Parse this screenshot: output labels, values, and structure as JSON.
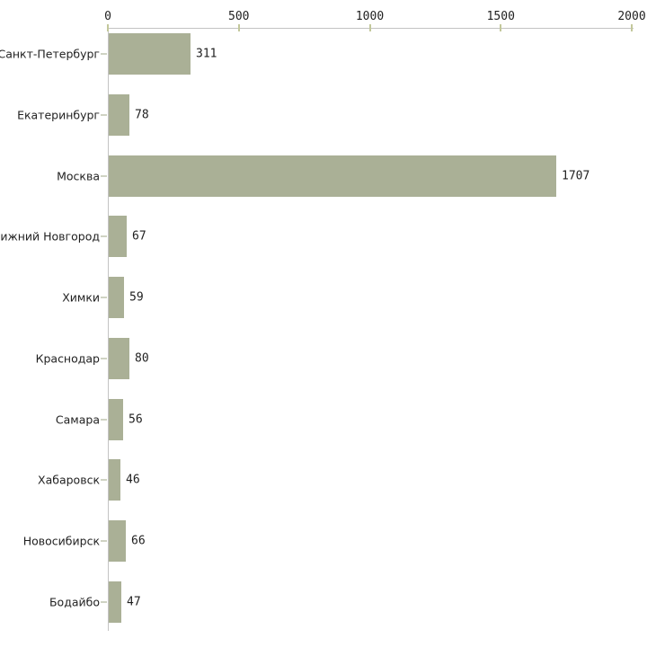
{
  "chart_data": {
    "type": "bar",
    "orientation": "horizontal",
    "title": "",
    "xlabel": "",
    "ylabel": "",
    "grid": false,
    "legend": false,
    "categories": [
      "Санкт-Петербург",
      "Екатеринбург",
      "Москва",
      "Нижний Новгород",
      "Химки",
      "Краснодар",
      "Самара",
      "Хабаровск",
      "Новосибирск",
      "Бодайбо"
    ],
    "values": [
      311,
      78,
      1707,
      67,
      59,
      80,
      56,
      46,
      66,
      47
    ],
    "x_ticks": [
      0,
      500,
      1000,
      1500,
      2000
    ],
    "xlim": [
      0,
      2000
    ],
    "colors": {
      "bar_fill": "#aab096",
      "axis_line": "#c3c3c3",
      "x_tick_mark": "#c3c89b",
      "category_tick_mark": "#cfd3c3",
      "text": "#1f1f1f",
      "background": "#ffffff"
    }
  }
}
